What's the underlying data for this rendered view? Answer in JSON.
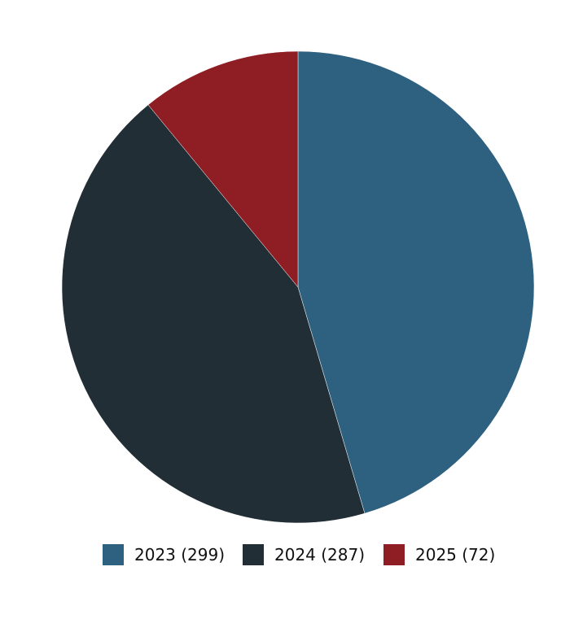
{
  "chart_data": {
    "type": "pie",
    "title": "",
    "slices": [
      {
        "label": "2023",
        "value": 299,
        "color": "#2e607f",
        "legend": "2023 (299)"
      },
      {
        "label": "2024",
        "value": 287,
        "color": "#222e36",
        "legend": "2024 (287)"
      },
      {
        "label": "2025",
        "value": 72,
        "color": "#8e1e23",
        "legend": "2025 (72)"
      }
    ],
    "start": "top",
    "direction": "clockwise",
    "legend_position": "bottom"
  }
}
